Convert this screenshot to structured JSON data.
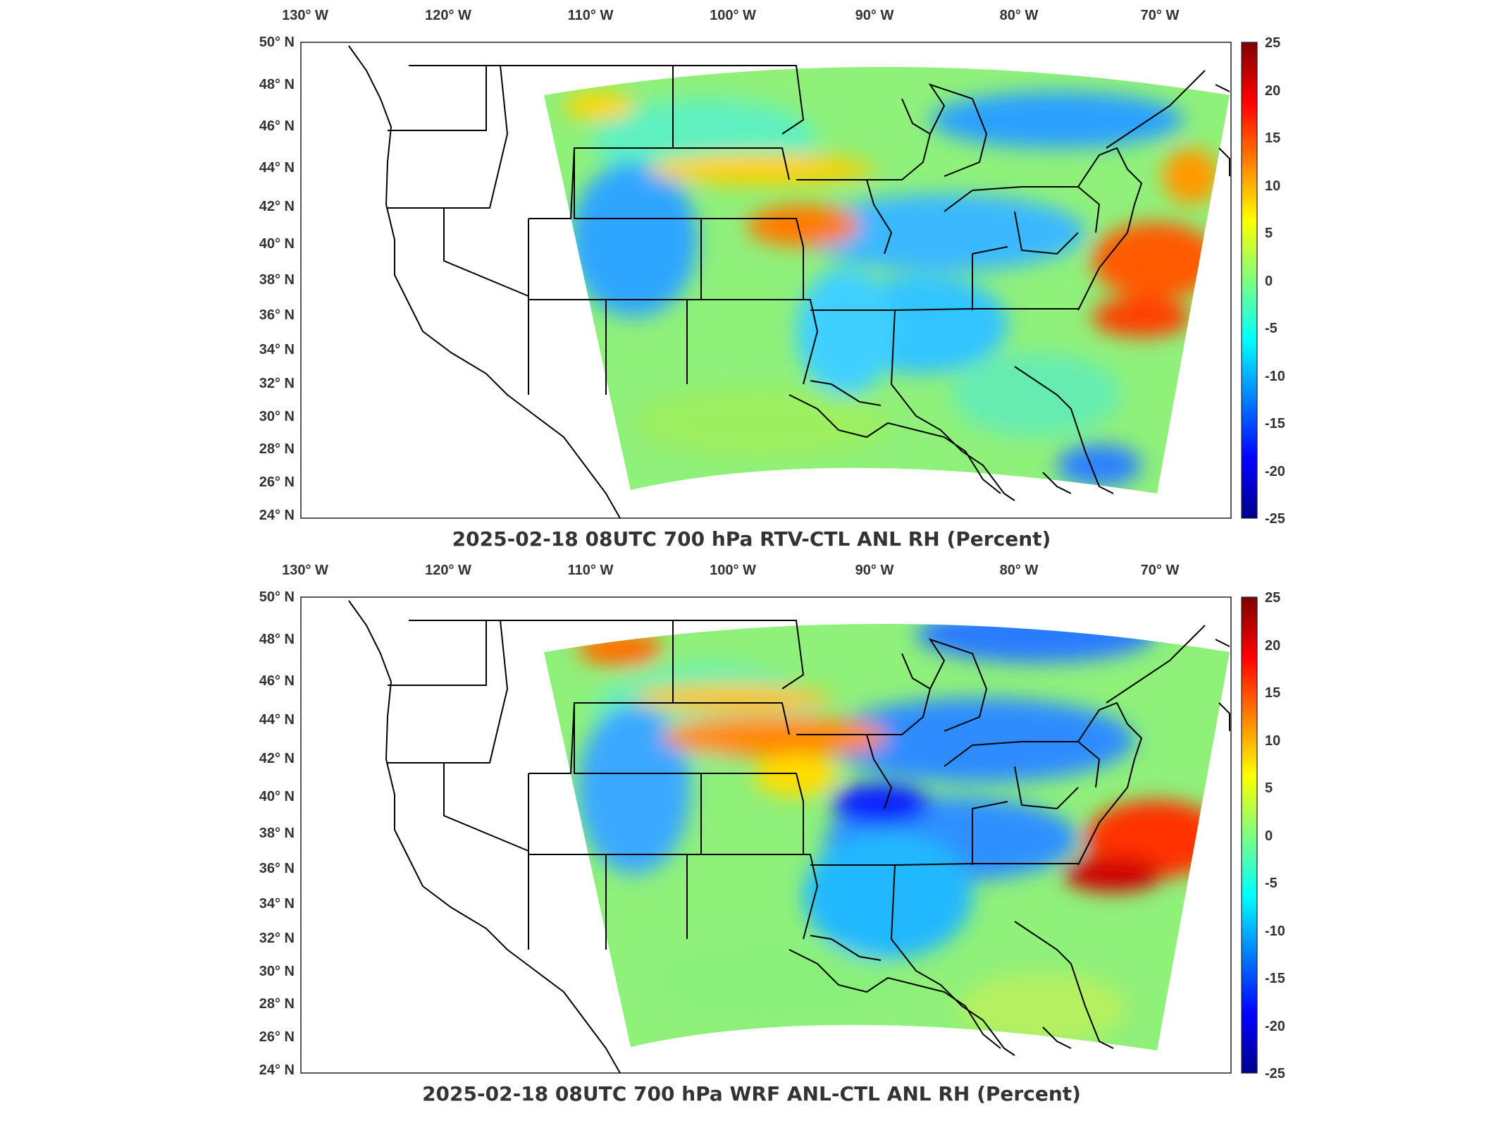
{
  "panels": [
    {
      "title": "2025-02-18 08UTC 700 hPa RTV-CTL ANL RH (Percent)",
      "lon_labels": [
        "130° W",
        "120° W",
        "110° W",
        "100° W",
        "90° W",
        "80° W",
        "70° W"
      ],
      "lat_labels": [
        "50° N",
        "48° N",
        "46° N",
        "44° N",
        "42° N",
        "40° N",
        "38° N",
        "36° N",
        "34° N",
        "32° N",
        "30° N",
        "28° N",
        "26° N",
        "24° N"
      ],
      "colorbar_ticks": [
        "25",
        "20",
        "15",
        "10",
        "5",
        "0",
        "-5",
        "-10",
        "-15",
        "-20",
        "-25"
      ]
    },
    {
      "title": "2025-02-18 08UTC 700 hPa WRF ANL-CTL ANL RH (Percent)",
      "lon_labels": [
        "130° W",
        "120° W",
        "110° W",
        "100° W",
        "90° W",
        "80° W",
        "70° W"
      ],
      "lat_labels": [
        "50° N",
        "48° N",
        "46° N",
        "44° N",
        "42° N",
        "40° N",
        "38° N",
        "36° N",
        "34° N",
        "32° N",
        "30° N",
        "28° N",
        "26° N",
        "24° N"
      ],
      "colorbar_ticks": [
        "25",
        "20",
        "15",
        "10",
        "5",
        "0",
        "-5",
        "-10",
        "-15",
        "-20",
        "-25"
      ]
    }
  ],
  "map": {
    "lon_range": [
      -131,
      -65
    ],
    "lat_range": [
      24,
      50
    ],
    "projection": "lambert-conformal",
    "colormap": "jet",
    "colorbar_range": [
      -25,
      25
    ],
    "colors": {
      "land_outline": "#000000",
      "background": "#ffffff"
    }
  }
}
